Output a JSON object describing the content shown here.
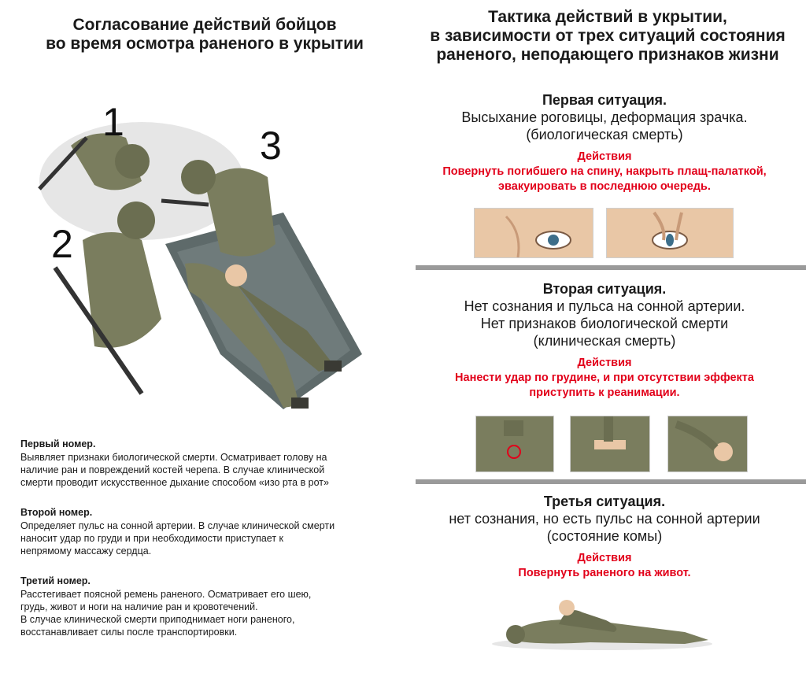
{
  "left": {
    "title_lines": [
      "Согласование действий бойцов",
      "во время осмотра раненого в укрытии"
    ],
    "figure_numbers": [
      "1",
      "2",
      "3"
    ],
    "roles": [
      {
        "title": "Первый номер.",
        "lines": [
          "Выявляет признаки биологической смерти. Осматривает голову на",
          "наличие ран и повреждений костей черепа. В случае клинической",
          "смерти проводит искусственное дыхание способом «изо рта в рот»"
        ]
      },
      {
        "title": "Второй номер.",
        "lines": [
          "Определяет пульс на сонной артерии. В случае клинической смерти",
          "наносит удар по груди и при необходимости приступает к",
          "непрямому массажу сердца."
        ]
      },
      {
        "title": "Третий номер.",
        "lines": [
          "Расстегивает поясной ремень раненого. Осматривает его шею,",
          "грудь, живот и ноги на наличие ран и кровотечений.",
          "В случае клинической смерти приподнимает ноги раненого,",
          "восстанавливает силы после транспортировки."
        ]
      }
    ]
  },
  "right": {
    "title_lines": [
      "Тактика действий в укрытии,",
      "в зависимости от трех ситуаций состояния",
      "раненого, неподающего признаков жизни"
    ],
    "situations": [
      {
        "title": "Первая ситуация.",
        "lines": [
          "Высыхание роговицы, деформация зрачка.",
          "(биологическая смерть)"
        ],
        "action_head": "Действия",
        "action_lines": [
          "Повернуть погибшего на спину, накрыть плащ-палаткой,",
          "эвакуировать в последнюю очередь."
        ]
      },
      {
        "title": "Вторая ситуация.",
        "lines": [
          "Нет сознания и пульса на сонной артерии.",
          "Нет признаков биологической смерти",
          "(клиническая смерть)"
        ],
        "action_head": "Действия",
        "action_lines": [
          "Нанести удар по грудине, и при отсутствии эффекта",
          "приступить к реанимации."
        ]
      },
      {
        "title": "Третья ситуация.",
        "lines": [
          "нет сознания, но есть пульс на сонной артерии",
          "(состояние комы)"
        ],
        "action_head": "Действия",
        "action_lines": [
          "Повернуть раненого на живот."
        ]
      }
    ]
  },
  "colors": {
    "action_red": "#e2001a",
    "divider_gray": "#9a9a9a",
    "uniform": "#7a7d5e",
    "skin": "#e9c7a6"
  }
}
